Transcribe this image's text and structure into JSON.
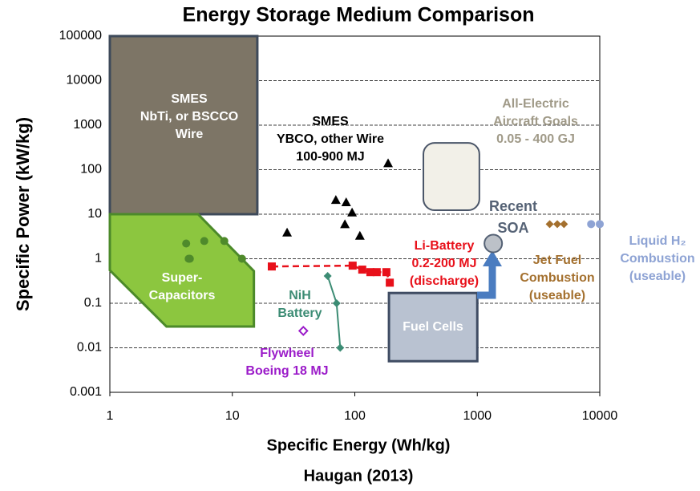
{
  "chart_data": {
    "type": "scatter",
    "title": "Energy Storage Medium Comparison",
    "x_label": "Specific Energy (Wh/kg)",
    "y_label": "Specific Power (kW/kg)",
    "caption": "Haugan (2013)",
    "xlim": [
      1,
      10000
    ],
    "ylim": [
      0.001,
      100000
    ],
    "xticks": [
      1,
      10,
      100,
      1000,
      10000
    ],
    "yticks": [
      100000,
      10000,
      1000,
      100,
      10,
      1,
      0.1,
      0.01,
      0.001
    ],
    "x_log": true,
    "y_log": true,
    "grid": true,
    "regions": [
      {
        "label": [
          "SMES",
          "NbTi, or BSCCO",
          "Wire"
        ],
        "shape": "rect",
        "color": "#7d7566",
        "x": [
          1,
          16
        ],
        "values": [
          10,
          100000
        ]
      },
      {
        "label": [
          "Super-",
          "Capacitors"
        ],
        "shape": "polygon",
        "color": "#8cc63f",
        "x": [
          1,
          5.25,
          15,
          15,
          2.9,
          1
        ],
        "values": [
          10,
          10,
          0.53,
          0.03,
          0.03,
          0.55
        ]
      },
      {
        "label": [
          "Fuel Cells"
        ],
        "shape": "rect",
        "color": "#b9c2d1",
        "x": [
          190,
          1000
        ],
        "values": [
          0.005,
          0.17
        ]
      },
      {
        "label": [
          "All-Electric",
          "Aircraft Goals",
          "0.05 - 400 GJ"
        ],
        "shape": "rounded",
        "color": "#f2f0e8",
        "x": [
          363,
          1040
        ],
        "values": [
          12.3,
          400
        ]
      }
    ],
    "series": [
      {
        "marker": "circle",
        "color": "#4f8a2b",
        "x": [
          4.2,
          4.5,
          4.4,
          5.9,
          8.6,
          12
        ],
        "values": [
          2.2,
          1.0,
          1.0,
          2.5,
          2.5,
          1.0
        ]
      },
      {
        "label": [
          "SMES",
          "YBCO, other Wire",
          "100-900 MJ"
        ],
        "marker": "triangle",
        "color": "#000000",
        "x": [
          28,
          70,
          85,
          95,
          83,
          110,
          187
        ],
        "values": [
          3.9,
          21,
          18.6,
          11,
          6,
          3.3,
          140
        ]
      },
      {
        "label": [
          "Li-Battery",
          "0.2-200 MJ",
          "(discharge)"
        ],
        "marker": "square",
        "line": "dashed",
        "color": "#e8101a",
        "x": [
          21,
          96,
          115,
          134,
          151,
          181,
          193
        ],
        "values": [
          0.67,
          0.7,
          0.57,
          0.5,
          0.5,
          0.5,
          0.29
        ]
      },
      {
        "label": [
          "NiH",
          "Battery"
        ],
        "marker": "diamond",
        "line": "solid",
        "color": "#3c8c74",
        "x": [
          60,
          71,
          76
        ],
        "values": [
          0.41,
          0.1,
          0.01
        ]
      },
      {
        "label": [
          "Flywheel",
          "Boeing 18 MJ"
        ],
        "marker": "open-diamond",
        "color": "#9b1bc9",
        "x": [
          38
        ],
        "values": [
          0.024
        ]
      },
      {
        "label": [
          "Recent",
          "SOA"
        ],
        "marker": "big-circle",
        "color": "#556275",
        "x": [
          1350
        ],
        "values": [
          2.2
        ]
      },
      {
        "label": [
          "Jet Fuel",
          "Combustion",
          "(useable)"
        ],
        "marker": "diamond",
        "color": "#a4702e",
        "x": [
          3900,
          4500,
          5100
        ],
        "values": [
          6,
          6,
          6
        ]
      },
      {
        "label": [
          "Liquid H₂",
          "Combustion",
          "(useable)"
        ],
        "marker": "circle",
        "color": "#8ea3d4",
        "x": [
          8500,
          10000
        ],
        "values": [
          6,
          6
        ]
      }
    ]
  }
}
